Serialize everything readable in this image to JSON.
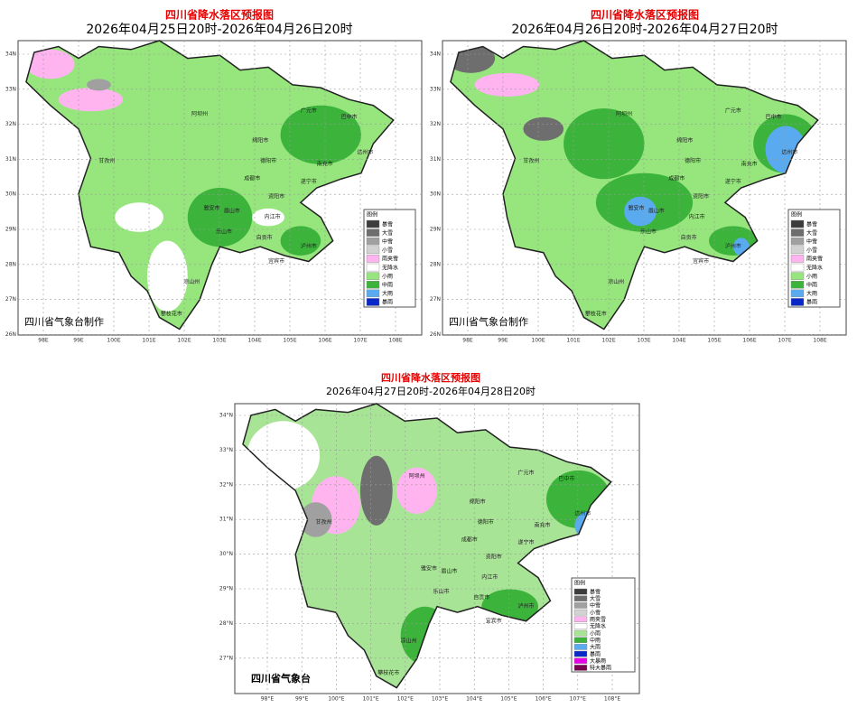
{
  "maps": [
    {
      "title": "四川省降水落区预报图",
      "subtitle": "2026年04月25日20时-2026年04月26日20时",
      "credit": "四川省气象台制作",
      "lat_labels": [
        "34N",
        "33N",
        "32N",
        "31N",
        "30N",
        "29N",
        "28N",
        "27N",
        "26N"
      ],
      "lon_labels": [
        "98E",
        "99E",
        "100E",
        "101E",
        "102E",
        "103E",
        "104E",
        "105E",
        "106E",
        "107E",
        "108E"
      ],
      "legend": {
        "title": "图例",
        "items": [
          {
            "label": "暴雪",
            "color": "#3c3c3c"
          },
          {
            "label": "大雪",
            "color": "#6e6e6e"
          },
          {
            "label": "中雪",
            "color": "#a0a0a0"
          },
          {
            "label": "小雪",
            "color": "#d2d2d2"
          },
          {
            "label": "雨夹雪",
            "color": "#ffb4f0"
          },
          {
            "label": "无降水",
            "color": "#ffffff"
          },
          {
            "label": "小雨",
            "color": "#96e67d"
          },
          {
            "label": "中雨",
            "color": "#3cb43c"
          },
          {
            "label": "大雨",
            "color": "#5aaaf0"
          },
          {
            "label": "暴雨",
            "color": "#0a28c8"
          }
        ]
      },
      "cities": [
        "阿坝州",
        "广元市",
        "巴中市",
        "绵阳市",
        "达州市",
        "德阳市",
        "南充市",
        "成都市",
        "甘孜州",
        "雅安市",
        "遂宁市",
        "眉山市",
        "资阳市",
        "乐山市",
        "内江市",
        "自贡市",
        "宜宾市",
        "泸州市",
        "凉山州",
        "攀枝花市"
      ]
    },
    {
      "title": "四川省降水落区预报图",
      "subtitle": "2026年04月26日20时-2026年04月27日20时",
      "credit": "四川省气象台制作",
      "lat_labels": [
        "34N",
        "33N",
        "32N",
        "31N",
        "30N",
        "29N",
        "28N",
        "27N",
        "26N"
      ],
      "lon_labels": [
        "98E",
        "99E",
        "100E",
        "101E",
        "102E",
        "103E",
        "104E",
        "105E",
        "106E",
        "107E",
        "108E"
      ],
      "legend": {
        "title": "图例",
        "items": [
          {
            "label": "暴雪",
            "color": "#3c3c3c"
          },
          {
            "label": "大雪",
            "color": "#6e6e6e"
          },
          {
            "label": "中雪",
            "color": "#a0a0a0"
          },
          {
            "label": "小雪",
            "color": "#d2d2d2"
          },
          {
            "label": "雨夹雪",
            "color": "#ffb4f0"
          },
          {
            "label": "无降水",
            "color": "#ffffff"
          },
          {
            "label": "小雨",
            "color": "#96e67d"
          },
          {
            "label": "中雨",
            "color": "#3cb43c"
          },
          {
            "label": "大雨",
            "color": "#5aaaf0"
          },
          {
            "label": "暴雨",
            "color": "#0a28c8"
          }
        ]
      },
      "cities": [
        "阿坝州",
        "广元市",
        "巴中市",
        "绵阳市",
        "达州市",
        "德阳市",
        "南充市",
        "成都市",
        "甘孜州",
        "雅安市",
        "遂宁市",
        "眉山市",
        "资阳市",
        "乐山市",
        "内江市",
        "自贡市",
        "宜宾市",
        "泸州市",
        "凉山州",
        "攀枝花市"
      ]
    },
    {
      "title": "四川省降水落区预报图",
      "subtitle": "2026年04月27日20时-2026年04月28日20时",
      "credit": "四川省气象台",
      "lat_labels": [
        "34°N",
        "33°N",
        "32°N",
        "31°N",
        "30°N",
        "29°N",
        "28°N",
        "27°N"
      ],
      "lon_labels": [
        "98°E",
        "99°E",
        "100°E",
        "101°E",
        "102°E",
        "103°E",
        "104°E",
        "105°E",
        "106°E",
        "107°E",
        "108°E"
      ],
      "legend": {
        "title": "图例",
        "items": [
          {
            "label": "暴雪",
            "color": "#3c3c3c"
          },
          {
            "label": "大雪",
            "color": "#6e6e6e"
          },
          {
            "label": "中雪",
            "color": "#a0a0a0"
          },
          {
            "label": "小雪",
            "color": "#d2d2d2"
          },
          {
            "label": "雨夹雪",
            "color": "#ffb4f0"
          },
          {
            "label": "无降水",
            "color": "#ffffff"
          },
          {
            "label": "小雨",
            "color": "#a8e495"
          },
          {
            "label": "中雨",
            "color": "#3cb43c"
          },
          {
            "label": "大雨",
            "color": "#5aaaf0"
          },
          {
            "label": "暴雨",
            "color": "#0a28c8"
          },
          {
            "label": "大暴雨",
            "color": "#e600e6"
          },
          {
            "label": "特大暴雨",
            "color": "#780050"
          }
        ]
      },
      "cities": [
        "阿坝州",
        "广元市",
        "巴中市",
        "绵阳市",
        "达州市",
        "德阳市",
        "南充市",
        "成都市",
        "甘孜州",
        "雅安市",
        "遂宁市",
        "眉山市",
        "资阳市",
        "乐山市",
        "内江市",
        "自贡市",
        "宜宾市",
        "泸州市",
        "凉山州",
        "攀枝花市"
      ]
    }
  ]
}
